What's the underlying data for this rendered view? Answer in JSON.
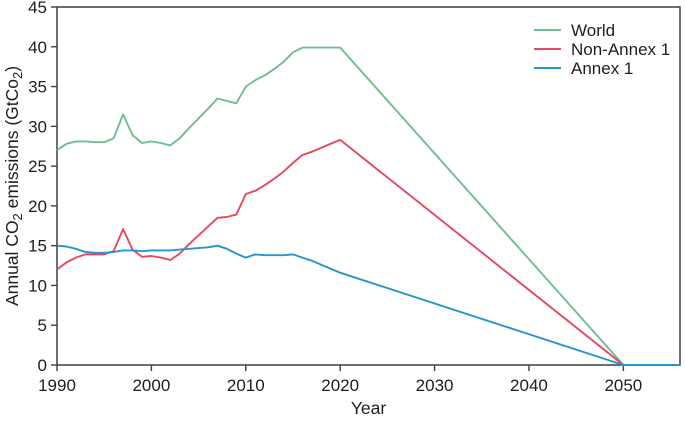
{
  "chart_data": {
    "type": "line",
    "title": "",
    "xlabel": "Year",
    "ylabel": "Annual CO2 emissions (GtCo2)",
    "ylabel_parts": [
      {
        "text": "Annual CO",
        "sub": false
      },
      {
        "text": "2",
        "sub": true
      },
      {
        "text": " emissions (GtCo",
        "sub": false
      },
      {
        "text": "2",
        "sub": true
      },
      {
        "text": ")",
        "sub": false
      }
    ],
    "xlim": [
      1990,
      2056
    ],
    "ylim": [
      0,
      45
    ],
    "x_ticks": [
      1990,
      2000,
      2010,
      2020,
      2030,
      2040,
      2050
    ],
    "y_ticks": [
      0,
      5,
      10,
      15,
      20,
      25,
      30,
      35,
      40,
      45
    ],
    "grid": false,
    "legend_position": "top-right",
    "axis_color": "#3f3f41",
    "text_color": "#1e1e20",
    "series": [
      {
        "id": "world",
        "name": "World",
        "color": "#6ebe90",
        "points": [
          [
            1990,
            27.0
          ],
          [
            1991,
            27.8
          ],
          [
            1992,
            28.1
          ],
          [
            1993,
            28.1
          ],
          [
            1994,
            28.0
          ],
          [
            1995,
            28.0
          ],
          [
            1996,
            28.5
          ],
          [
            1997,
            31.5
          ],
          [
            1998,
            28.9
          ],
          [
            1999,
            27.9
          ],
          [
            2000,
            28.1
          ],
          [
            2001,
            27.9
          ],
          [
            2002,
            27.6
          ],
          [
            2003,
            28.5
          ],
          [
            2004,
            29.8
          ],
          [
            2005,
            31.0
          ],
          [
            2006,
            32.2
          ],
          [
            2007,
            33.5
          ],
          [
            2008,
            33.2
          ],
          [
            2009,
            32.9
          ],
          [
            2010,
            35.0
          ],
          [
            2011,
            35.8
          ],
          [
            2012,
            36.4
          ],
          [
            2013,
            37.2
          ],
          [
            2014,
            38.1
          ],
          [
            2015,
            39.3
          ],
          [
            2016,
            39.9
          ],
          [
            2017,
            39.9
          ],
          [
            2018,
            39.9
          ],
          [
            2019,
            39.9
          ],
          [
            2020,
            39.9
          ],
          [
            2050,
            0
          ]
        ]
      },
      {
        "id": "non-annex-1",
        "name": "Non-Annex 1",
        "color": "#e4495f",
        "points": [
          [
            1990,
            12.0
          ],
          [
            1991,
            12.9
          ],
          [
            1992,
            13.5
          ],
          [
            1993,
            13.9
          ],
          [
            1994,
            13.9
          ],
          [
            1995,
            13.9
          ],
          [
            1996,
            14.3
          ],
          [
            1997,
            17.1
          ],
          [
            1998,
            14.5
          ],
          [
            1999,
            13.6
          ],
          [
            2000,
            13.7
          ],
          [
            2001,
            13.5
          ],
          [
            2002,
            13.2
          ],
          [
            2003,
            14.0
          ],
          [
            2004,
            15.2
          ],
          [
            2005,
            16.3
          ],
          [
            2006,
            17.4
          ],
          [
            2007,
            18.5
          ],
          [
            2008,
            18.6
          ],
          [
            2009,
            18.9
          ],
          [
            2010,
            21.5
          ],
          [
            2011,
            21.9
          ],
          [
            2012,
            22.6
          ],
          [
            2013,
            23.4
          ],
          [
            2014,
            24.3
          ],
          [
            2015,
            25.4
          ],
          [
            2016,
            26.4
          ],
          [
            2017,
            26.8
          ],
          [
            2018,
            27.3
          ],
          [
            2019,
            27.8
          ],
          [
            2020,
            28.3
          ],
          [
            2050,
            0
          ]
        ]
      },
      {
        "id": "annex-1",
        "name": "Annex 1",
        "color": "#2496c9",
        "points": [
          [
            1990,
            15.0
          ],
          [
            1991,
            14.9
          ],
          [
            1992,
            14.6
          ],
          [
            1993,
            14.2
          ],
          [
            1994,
            14.1
          ],
          [
            1995,
            14.1
          ],
          [
            1996,
            14.2
          ],
          [
            1997,
            14.4
          ],
          [
            1998,
            14.4
          ],
          [
            1999,
            14.3
          ],
          [
            2000,
            14.4
          ],
          [
            2001,
            14.4
          ],
          [
            2002,
            14.4
          ],
          [
            2003,
            14.5
          ],
          [
            2004,
            14.6
          ],
          [
            2005,
            14.7
          ],
          [
            2006,
            14.8
          ],
          [
            2007,
            15.0
          ],
          [
            2008,
            14.6
          ],
          [
            2009,
            14.0
          ],
          [
            2010,
            13.5
          ],
          [
            2011,
            13.9
          ],
          [
            2012,
            13.8
          ],
          [
            2013,
            13.8
          ],
          [
            2014,
            13.8
          ],
          [
            2015,
            13.9
          ],
          [
            2016,
            13.5
          ],
          [
            2017,
            13.1
          ],
          [
            2018,
            12.6
          ],
          [
            2019,
            12.1
          ],
          [
            2020,
            11.6
          ],
          [
            2050,
            0
          ],
          [
            2056,
            0
          ]
        ]
      }
    ]
  }
}
